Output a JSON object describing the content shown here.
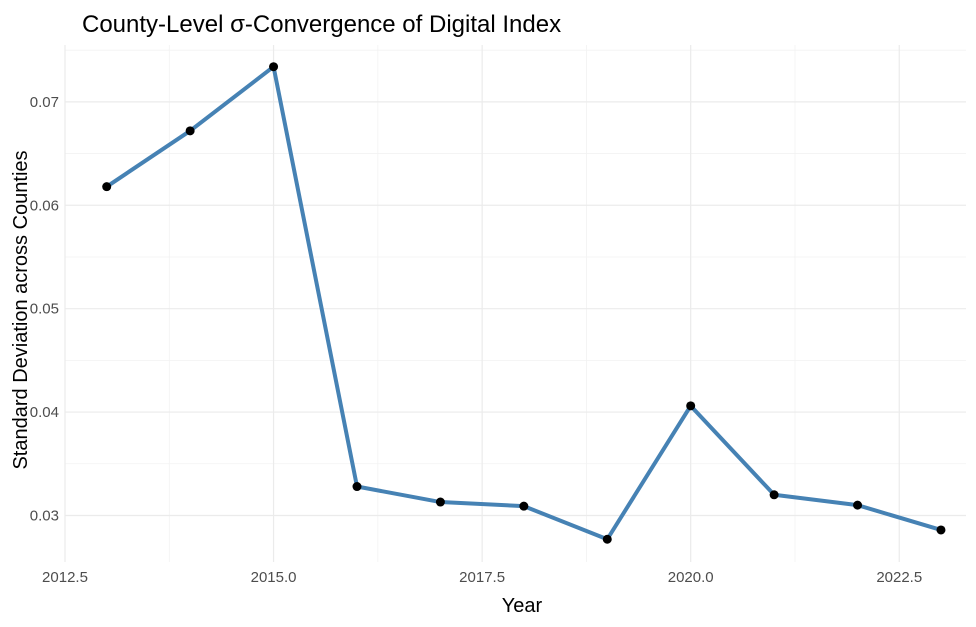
{
  "chart_data": {
    "type": "line",
    "title": "County-Level σ-Convergence of Digital Index",
    "xlabel": "Year",
    "ylabel": "Standard Deviation across Counties",
    "xlim": [
      2012.5,
      2023.3
    ],
    "ylim": [
      0.0255,
      0.0755
    ],
    "x_ticks": [
      2012.5,
      2015.0,
      2017.5,
      2020.0,
      2022.5
    ],
    "x_tick_labels": [
      "2012.5",
      "2015.0",
      "2017.5",
      "2020.0",
      "2022.5"
    ],
    "y_ticks": [
      0.03,
      0.04,
      0.05,
      0.06,
      0.07
    ],
    "y_tick_labels": [
      "0.03",
      "0.04",
      "0.05",
      "0.06",
      "0.07"
    ],
    "grid": true,
    "line_color": "#4682B4",
    "point_color": "#000000",
    "series": [
      {
        "x": [
          2013,
          2014,
          2015,
          2016,
          2017,
          2018,
          2019,
          2020,
          2021,
          2022,
          2023
        ],
        "values": [
          0.0618,
          0.0672,
          0.0734,
          0.0328,
          0.0313,
          0.0309,
          0.0277,
          0.0406,
          0.032,
          0.031,
          0.0286
        ]
      }
    ]
  }
}
